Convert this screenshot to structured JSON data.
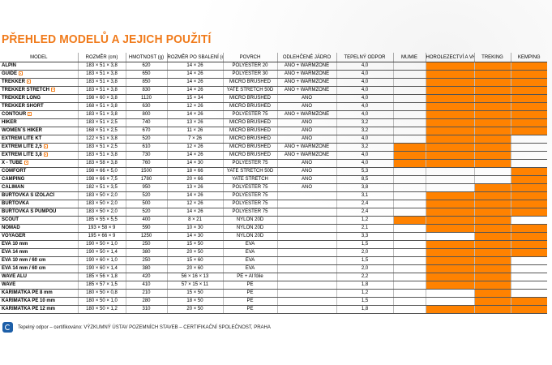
{
  "title": "PŘEHLED MODELŮ A JEJICH POUŽITÍ",
  "accent_color": "#ff8200",
  "columns": [
    "MODEL",
    "ROZMĚR (cm)",
    "HMOTNOST (g)",
    "ROZMĚR PO SBALENÍ (cm)",
    "POVRCH",
    "ODLEHČENÉ JÁDRO",
    "TEPELNÝ ODPOR",
    "MUMIE",
    "HOROLEZECTVÍ A VHT",
    "TREKING",
    "KEMPING"
  ],
  "rows": [
    {
      "model": "ALPIN",
      "badge": false,
      "size": "183 × 51 × 3,8",
      "weight": "620",
      "packed": "14 × 26",
      "surface": "POLYESTER 20",
      "core": "ANO + WARMZONE",
      "r": "4,0",
      "use": [
        0,
        1,
        1,
        1
      ]
    },
    {
      "model": "GUIDE",
      "badge": true,
      "size": "183 × 51 × 3,8",
      "weight": "650",
      "packed": "14 × 26",
      "surface": "POLYESTER 30",
      "core": "ANO + WARMZONE",
      "r": "4,0",
      "use": [
        0,
        1,
        1,
        1
      ]
    },
    {
      "model": "TREKKER",
      "badge": true,
      "size": "183 × 51 × 3,8",
      "weight": "850",
      "packed": "14 × 26",
      "surface": "MICRO BRUSHED",
      "core": "ANO + WARMZONE",
      "r": "4,0",
      "use": [
        0,
        1,
        1,
        1
      ]
    },
    {
      "model": "TREKKER STRETCH",
      "badge": true,
      "size": "183 × 51 × 3,8",
      "weight": "830",
      "packed": "14 × 26",
      "surface": "YATE STRETCH 50D",
      "core": "ANO + WARMZONE",
      "r": "4,0",
      "use": [
        0,
        1,
        1,
        1
      ]
    },
    {
      "model": "TREKKER LONG",
      "badge": false,
      "size": "198 × 60 × 3,8",
      "weight": "1120",
      "packed": "15 × 34",
      "surface": "MICRO BRUSHED",
      "core": "ANO",
      "r": "4,0",
      "use": [
        0,
        1,
        1,
        1
      ]
    },
    {
      "model": "TREKKER SHORT",
      "badge": false,
      "size": "168 × 51 × 3,8",
      "weight": "630",
      "packed": "12 × 26",
      "surface": "MICRO BRUSHED",
      "core": "ANO",
      "r": "4,0",
      "use": [
        0,
        1,
        1,
        1
      ]
    },
    {
      "model": "CONTOUR",
      "badge": true,
      "size": "183 × 51 × 3,8",
      "weight": "800",
      "packed": "14 × 26",
      "surface": "POLYESTER 75",
      "core": "ANO + WARMZONE",
      "r": "4,0",
      "use": [
        0,
        1,
        1,
        1
      ]
    },
    {
      "model": "HIKER",
      "badge": false,
      "size": "183 × 51 × 2,5",
      "weight": "740",
      "packed": "13 × 26",
      "surface": "MICRO BRUSHED",
      "core": "ANO",
      "r": "3,2",
      "use": [
        0,
        1,
        1,
        1
      ]
    },
    {
      "model": "WOMEN´S HIKER",
      "badge": false,
      "size": "168 × 51 × 2,5",
      "weight": "670",
      "packed": "11 × 26",
      "surface": "MICRO BRUSHED",
      "core": "ANO",
      "r": "3,2",
      "use": [
        0,
        1,
        1,
        1
      ]
    },
    {
      "model": "EXTREM LITE KT",
      "badge": false,
      "size": "122 × 51 × 3,8",
      "weight": "520",
      "packed": "7 × 26",
      "surface": "MICRO BRUSHED",
      "core": "ANO",
      "r": "4,0",
      "use": [
        0,
        1,
        1,
        0
      ]
    },
    {
      "model": "EXTREM LITE 2,5",
      "badge": true,
      "size": "183 × 51 × 2,5",
      "weight": "610",
      "packed": "12 × 26",
      "surface": "MICRO BRUSHED",
      "core": "ANO + WARMZONE",
      "r": "3,2",
      "use": [
        1,
        1,
        1,
        0
      ]
    },
    {
      "model": "EXTREM LITE 3,8",
      "badge": true,
      "size": "183 × 51 × 3,8",
      "weight": "730",
      "packed": "14 × 26",
      "surface": "MICRO BRUSHED",
      "core": "ANO + WARMZONE",
      "r": "4,0",
      "use": [
        1,
        1,
        1,
        0
      ]
    },
    {
      "model": "X - TUBE",
      "badge": true,
      "size": "183 × 58 × 3,8",
      "weight": "760",
      "packed": "14 × 30",
      "surface": "POLYESTER 75",
      "core": "ANO",
      "r": "4,0",
      "use": [
        1,
        1,
        1,
        0
      ]
    },
    {
      "model": "COMFORT",
      "badge": false,
      "size": "198 × 66 × 5,0",
      "weight": "1500",
      "packed": "18 × 66",
      "surface": "YATE STRETCH 50D",
      "core": "ANO",
      "r": "5,3",
      "use": [
        0,
        0,
        0,
        1
      ]
    },
    {
      "model": "CAMPING",
      "badge": false,
      "size": "198 × 66 × 7,5",
      "weight": "1780",
      "packed": "20 × 66",
      "surface": "YATE STRETCH",
      "core": "ANO",
      "r": "8,5",
      "use": [
        0,
        0,
        0,
        1
      ]
    },
    {
      "model": "CALIMAN",
      "badge": false,
      "size": "182 × 51 × 3,5",
      "weight": "950",
      "packed": "13 × 26",
      "surface": "POLYESTER 75",
      "core": "ANO",
      "r": "3,8",
      "use": [
        0,
        0,
        1,
        1
      ]
    },
    {
      "model": "BUŘTOVKA S IZOLACÍ",
      "badge": false,
      "size": "183 × 50 × 2,0",
      "weight": "520",
      "packed": "14 × 26",
      "surface": "POLYESTER 75",
      "core": "",
      "r": "3,1",
      "use": [
        0,
        1,
        1,
        1
      ]
    },
    {
      "model": "BUŘTOVKA",
      "badge": false,
      "size": "183 × 50 × 2,0",
      "weight": "500",
      "packed": "12 × 26",
      "surface": "POLYESTER 75",
      "core": "",
      "r": "2,4",
      "use": [
        0,
        1,
        1,
        1
      ]
    },
    {
      "model": "BUŘTOVKA S PUMPOU",
      "badge": false,
      "size": "183 × 50 × 2,0",
      "weight": "520",
      "packed": "14 × 26",
      "surface": "POLYESTER 75",
      "core": "",
      "r": "2,4",
      "use": [
        0,
        1,
        1,
        1
      ]
    },
    {
      "model": "SCOUT",
      "badge": false,
      "size": "185 × 55 × 5,5",
      "weight": "400",
      "packed": "8 × 21",
      "surface": "NYLON 20D",
      "core": "",
      "r": "1,2",
      "use": [
        1,
        1,
        1,
        0
      ]
    },
    {
      "model": "NOMAD",
      "badge": false,
      "size": "193 × 58 × 9",
      "weight": "590",
      "packed": "10 × 30",
      "surface": "NYLON 20D",
      "core": "",
      "r": "2,1",
      "use": [
        0,
        1,
        1,
        1
      ]
    },
    {
      "model": "VOYAGER",
      "badge": false,
      "size": "195 × 66 × 9",
      "weight": "1250",
      "packed": "14 × 30",
      "surface": "NYLON 20D",
      "core": "",
      "r": "3,3",
      "use": [
        0,
        0,
        1,
        1
      ]
    },
    {
      "model": "EVA 10 mm",
      "badge": false,
      "size": "190 × 50 × 1,0",
      "weight": "250",
      "packed": "15 × 50",
      "surface": "EVA",
      "core": "",
      "r": "1,5",
      "use": [
        0,
        1,
        1,
        1
      ]
    },
    {
      "model": "EVA 14 mm",
      "badge": false,
      "size": "190 × 50 × 1,4",
      "weight": "380",
      "packed": "20 × 50",
      "surface": "EVA",
      "core": "",
      "r": "2,0",
      "use": [
        0,
        1,
        1,
        1
      ]
    },
    {
      "model": "EVA 10 mm / 60 cm",
      "badge": false,
      "size": "190 × 60 × 1,0",
      "weight": "250",
      "packed": "15 × 60",
      "surface": "EVA",
      "core": "",
      "r": "1,5",
      "use": [
        0,
        1,
        1,
        0
      ]
    },
    {
      "model": "EVA 14 mm / 60 cm",
      "badge": false,
      "size": "190 × 60 × 1,4",
      "weight": "380",
      "packed": "20 × 60",
      "surface": "EVA",
      "core": "",
      "r": "2,0",
      "use": [
        0,
        1,
        1,
        0
      ]
    },
    {
      "model": "WAVE ALU",
      "badge": false,
      "size": "185 × 56 × 1,8",
      "weight": "420",
      "packed": "56 × 16 × 13",
      "surface": "PE + Al fólie",
      "core": "",
      "r": "2,2",
      "use": [
        0,
        1,
        1,
        0
      ]
    },
    {
      "model": "WAVE",
      "badge": false,
      "size": "185 × 57 × 1,5",
      "weight": "410",
      "packed": "57 × 15 × 11",
      "surface": "PE",
      "core": "",
      "r": "1,8",
      "use": [
        0,
        1,
        1,
        0
      ]
    },
    {
      "model": "KARIMATKA PE 8 mm",
      "badge": false,
      "size": "180 × 50 × 0,8",
      "weight": "210",
      "packed": "15 × 50",
      "surface": "PE",
      "core": "",
      "r": "1,2",
      "use": [
        0,
        0,
        1,
        0
      ]
    },
    {
      "model": "KARIMATKA PE 10 mm",
      "badge": false,
      "size": "180 × 50 × 1,0",
      "weight": "280",
      "packed": "18 × 50",
      "surface": "PE",
      "core": "",
      "r": "1,5",
      "use": [
        0,
        0,
        1,
        1
      ]
    },
    {
      "model": "KARIMATKA PE 12 mm",
      "badge": false,
      "size": "180 × 50 × 1,2",
      "weight": "310",
      "packed": "20 × 50",
      "surface": "PE",
      "core": "",
      "r": "1,8",
      "use": [
        0,
        1,
        1,
        1
      ]
    }
  ],
  "footnote": "Tepelný odpor – certifikováno: VÝZKUMNÝ ÚSTAV POZEMNÍCH STAVEB – CERTIFIKAČNÍ SPOLEČNOST, PRAHA"
}
